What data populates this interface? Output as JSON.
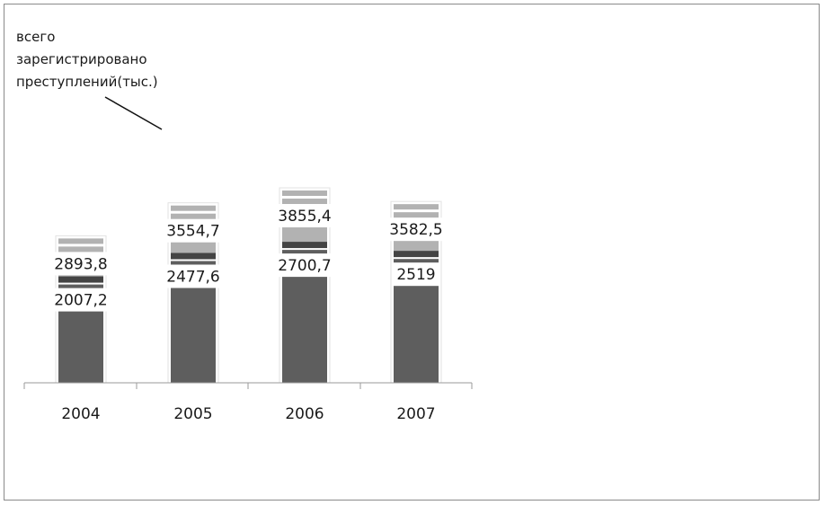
{
  "chart_data": {
    "type": "bar",
    "stacked": true,
    "categories": [
      "2004",
      "2005",
      "2006",
      "2007"
    ],
    "series": [
      {
        "name": "",
        "values": [
          2007.2,
          2477.6,
          2700.7,
          2519
        ],
        "labels": [
          "2007,2",
          "2477,6",
          "2700,7",
          "2519"
        ],
        "color": "#5e5e5e"
      },
      {
        "name": "всего зарегистрировано преступлений(тыс.)",
        "values": [
          2893.8,
          3554.7,
          3855.4,
          3582.5
        ],
        "labels": [
          "2893,8",
          "3554,7",
          "3855,4",
          "3582,5"
        ],
        "color": "#b2b2b2"
      }
    ],
    "callout": [
      "всего",
      "зарегистрировано",
      "преступлений(тыс.)"
    ],
    "title": "",
    "xlabel": "",
    "ylabel": "",
    "grid": false,
    "colors": {
      "dark_bar": "#5e5e5e",
      "light_bar": "#b2b2b2",
      "separator": "#444444",
      "axis": "#9a9a9a"
    }
  }
}
